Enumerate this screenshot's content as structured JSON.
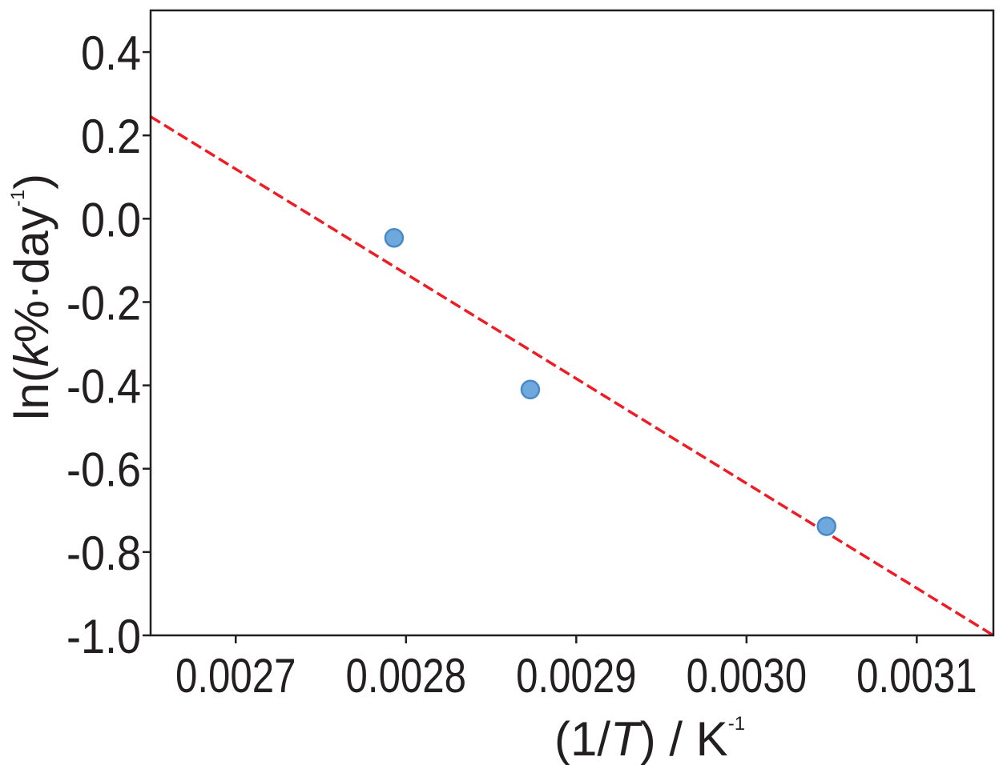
{
  "chart_data": {
    "type": "scatter",
    "title": "",
    "xlabel": {
      "prefix": "(1/",
      "var": "T",
      "suffix": ") / K",
      "sup": "-1"
    },
    "ylabel": {
      "prefix": "ln(",
      "var": "k",
      "suffix": "%·day",
      "sup": "-1",
      "close": ")"
    },
    "xlim": [
      0.00265,
      0.003145
    ],
    "ylim": [
      -1.0,
      0.5
    ],
    "x_ticks": [
      0.0027,
      0.0028,
      0.0029,
      0.003,
      0.0031
    ],
    "x_tick_labels": [
      "0.0027",
      "0.0028",
      "0.0029",
      "0.0030",
      "0.0031"
    ],
    "y_ticks": [
      0.4,
      0.2,
      0.0,
      -0.2,
      -0.4,
      -0.6,
      -0.8,
      -1.0
    ],
    "y_tick_labels": [
      "0.4",
      "0.2",
      "0.0",
      "-0.2",
      "-0.4",
      "-0.6",
      "-0.8",
      "-1.0"
    ],
    "grid": false,
    "legend": "none",
    "series": [
      {
        "kind": "points",
        "color": "#6fa8dc",
        "edge_color": "#4a89c8",
        "x": [
          0.002793,
          0.002873,
          0.003047
        ],
        "y": [
          -0.046,
          -0.41,
          -0.738
        ]
      },
      {
        "kind": "fit-line",
        "style": "dashed",
        "color": "#ee1c25",
        "x": [
          0.00265,
          0.003145
        ],
        "y": [
          0.245,
          -1.0
        ]
      }
    ]
  }
}
